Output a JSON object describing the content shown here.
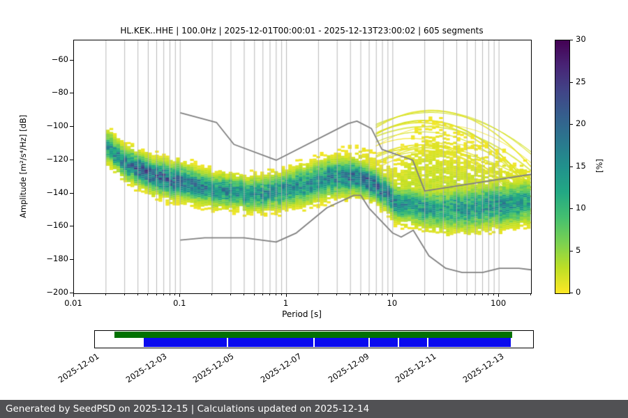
{
  "figure": {
    "title": "HL.KEK..HHE | 100.0Hz | 2025-12-01T00:00:01 - 2025-12-13T23:00:02 | 605 segments",
    "footer": "Generated by SeedPSD on 2025-12-15 | Calculations updated on 2025-12-14",
    "footer_bg": "#515154"
  },
  "chart_data": {
    "type": "heatmap",
    "subtype": "ppsd-probability-density",
    "title": "HL.KEK..HHE | 100.0Hz | 2025-12-01T00:00:01 - 2025-12-13T23:00:02 | 605 segments",
    "segments_count": 605,
    "xlabel": "Period [s]",
    "ylabel": "Amplitude [m²/s⁴/Hz] [dB]",
    "xscale": "log",
    "xlim": [
      0.01,
      200
    ],
    "ylim": [
      -200,
      -48
    ],
    "x_ticks": [
      0.01,
      0.1,
      1,
      10,
      100
    ],
    "x_tick_labels": [
      "0.01",
      "0.1",
      "1",
      "10",
      "100"
    ],
    "y_ticks": [
      -60,
      -80,
      -100,
      -120,
      -140,
      -160,
      -180,
      -200
    ],
    "grid": "vertical-log",
    "grid_color": "#b0b0b0",
    "noise_model_color": "#808080",
    "colorbar": {
      "label": "[%]",
      "min": 0,
      "max": 30,
      "ticks": [
        0,
        5,
        10,
        15,
        20,
        25,
        30
      ],
      "colormap": "viridis_r",
      "stops": [
        "#440154",
        "#482475",
        "#414487",
        "#355f8d",
        "#2a788e",
        "#21918c",
        "#22a884",
        "#44bf70",
        "#7ad151",
        "#bddf26",
        "#fde725"
      ]
    },
    "density_mode_columns": [
      "period_s",
      "center_db",
      "spread_db",
      "peak_pct",
      "tail_up_db",
      "tail_down_db"
    ],
    "density_mode": [
      [
        0.02,
        -112,
        5.0,
        14,
        11,
        14
      ],
      [
        0.03,
        -122,
        5.0,
        18,
        13,
        12
      ],
      [
        0.045,
        -128,
        5.0,
        21,
        15,
        11
      ],
      [
        0.07,
        -131,
        5.5,
        20,
        13,
        12
      ],
      [
        0.1,
        -133,
        5.5,
        18,
        12,
        13
      ],
      [
        0.2,
        -138,
        5.0,
        16,
        11,
        12
      ],
      [
        0.4,
        -140,
        5.0,
        15,
        12,
        11
      ],
      [
        0.8,
        -139,
        5.5,
        15,
        13,
        11
      ],
      [
        1.5,
        -135,
        6.0,
        15,
        14,
        12
      ],
      [
        3.0,
        -129,
        6.0,
        16,
        18,
        13
      ],
      [
        5.0,
        -132,
        5.0,
        21,
        22,
        12
      ],
      [
        7.0,
        -136,
        5.0,
        19,
        20,
        12
      ],
      [
        10.0,
        -145,
        5.5,
        16,
        28,
        11
      ],
      [
        15.0,
        -148,
        6.0,
        14,
        50,
        11
      ],
      [
        25.0,
        -150,
        6.5,
        13,
        58,
        11
      ],
      [
        50.0,
        -149,
        7.0,
        14,
        45,
        12
      ],
      [
        100.0,
        -147,
        7.0,
        15,
        35,
        13
      ],
      [
        180.0,
        -145,
        7.0,
        13,
        25,
        13
      ]
    ],
    "streaks": {
      "count": 16,
      "period_range_s": [
        14,
        40
      ],
      "amp_range_db": [
        -88,
        -116
      ]
    },
    "high_noise_model": [
      [
        0.1,
        -91.5
      ],
      [
        0.22,
        -97.4
      ],
      [
        0.32,
        -110.5
      ],
      [
        0.8,
        -120.0
      ],
      [
        3.8,
        -98.0
      ],
      [
        4.6,
        -96.5
      ],
      [
        6.3,
        -101.0
      ],
      [
        7.9,
        -113.5
      ],
      [
        15.4,
        -120.0
      ],
      [
        20.0,
        -138.5
      ],
      [
        354.8,
        -126.0
      ]
    ],
    "low_noise_model": [
      [
        0.1,
        -168.0
      ],
      [
        0.17,
        -166.7
      ],
      [
        0.4,
        -166.7
      ],
      [
        0.8,
        -169.2
      ],
      [
        1.24,
        -163.7
      ],
      [
        2.4,
        -148.6
      ],
      [
        4.3,
        -141.1
      ],
      [
        5.0,
        -141.1
      ],
      [
        6.0,
        -149.0
      ],
      [
        10.0,
        -163.8
      ],
      [
        12.0,
        -166.2
      ],
      [
        15.6,
        -162.1
      ],
      [
        21.9,
        -177.5
      ],
      [
        31.6,
        -185.0
      ],
      [
        45.0,
        -187.5
      ],
      [
        70.0,
        -187.5
      ],
      [
        101.0,
        -185.0
      ],
      [
        154.0,
        -185.0
      ],
      [
        328.0,
        -187.5
      ]
    ]
  },
  "timeline": {
    "span_days": 13,
    "label_step_days": 2,
    "labels": [
      "2025-12-01",
      "2025-12-03",
      "2025-12-05",
      "2025-12-07",
      "2025-12-09",
      "2025-12-11",
      "2025-12-13"
    ],
    "green_color": "#027102",
    "blue_color": "#0a0aee",
    "green_segments": [
      [
        0.044,
        0.956
      ]
    ],
    "blue_segments": [
      [
        0.111,
        0.302
      ],
      [
        0.305,
        0.5
      ],
      [
        0.503,
        0.627
      ],
      [
        0.63,
        0.694
      ],
      [
        0.697,
        0.76
      ],
      [
        0.763,
        0.952
      ]
    ]
  }
}
